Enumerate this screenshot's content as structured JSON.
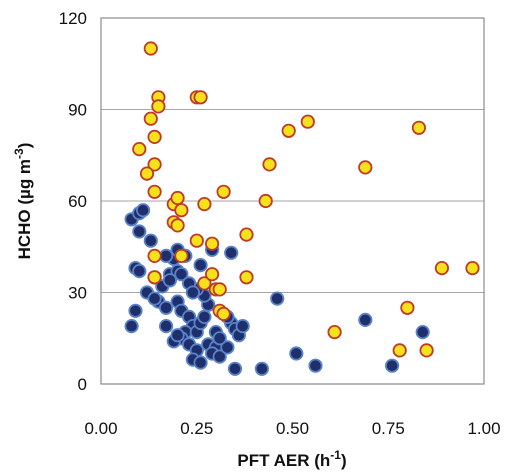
{
  "chart_data": {
    "type": "scatter",
    "xlabel": "PFT  AER (h",
    "xlabel_sup": "-1",
    "xlabel_tail": ")",
    "ylabel": "HCHO (µg m",
    "ylabel_sup": "-3",
    "ylabel_tail": ")",
    "xlim": [
      0.0,
      1.0
    ],
    "ylim": [
      0,
      120
    ],
    "x_ticks": [
      "0.00",
      "0.25",
      "0.50",
      "0.75",
      "1.00"
    ],
    "y_ticks": [
      "0",
      "30",
      "60",
      "90",
      "120"
    ],
    "grid": "horizontal",
    "legend": "none",
    "series": [
      {
        "color": "#1f2f6b",
        "edge": "#5a82c8",
        "points": [
          [
            0.08,
            54
          ],
          [
            0.1,
            56
          ],
          [
            0.11,
            57
          ],
          [
            0.1,
            50
          ],
          [
            0.13,
            47
          ],
          [
            0.09,
            38
          ],
          [
            0.1,
            37
          ],
          [
            0.14,
            35
          ],
          [
            0.16,
            32
          ],
          [
            0.12,
            30
          ],
          [
            0.15,
            27
          ],
          [
            0.17,
            25
          ],
          [
            0.14,
            28
          ],
          [
            0.09,
            24
          ],
          [
            0.08,
            19
          ],
          [
            0.17,
            19
          ],
          [
            0.18,
            36
          ],
          [
            0.2,
            37
          ],
          [
            0.18,
            34
          ],
          [
            0.21,
            36
          ],
          [
            0.19,
            41
          ],
          [
            0.17,
            42
          ],
          [
            0.2,
            44
          ],
          [
            0.22,
            42
          ],
          [
            0.2,
            27
          ],
          [
            0.21,
            24
          ],
          [
            0.23,
            22
          ],
          [
            0.24,
            19
          ],
          [
            0.22,
            17
          ],
          [
            0.25,
            17
          ],
          [
            0.26,
            20
          ],
          [
            0.27,
            22
          ],
          [
            0.28,
            26
          ],
          [
            0.27,
            29
          ],
          [
            0.25,
            31
          ],
          [
            0.23,
            33
          ],
          [
            0.21,
            15
          ],
          [
            0.23,
            13
          ],
          [
            0.25,
            11
          ],
          [
            0.24,
            8
          ],
          [
            0.26,
            7
          ],
          [
            0.28,
            13
          ],
          [
            0.3,
            12
          ],
          [
            0.29,
            10
          ],
          [
            0.31,
            9
          ],
          [
            0.33,
            12
          ],
          [
            0.3,
            17
          ],
          [
            0.31,
            15
          ],
          [
            0.34,
            20
          ],
          [
            0.35,
            18
          ],
          [
            0.36,
            16
          ],
          [
            0.37,
            19
          ],
          [
            0.33,
            22
          ],
          [
            0.34,
            43
          ],
          [
            0.26,
            39
          ],
          [
            0.29,
            44
          ],
          [
            0.24,
            30
          ],
          [
            0.19,
            14
          ],
          [
            0.2,
            16
          ],
          [
            0.35,
            5
          ],
          [
            0.42,
            5
          ],
          [
            0.46,
            28
          ],
          [
            0.51,
            10
          ],
          [
            0.56,
            6
          ],
          [
            0.69,
            21
          ],
          [
            0.76,
            6
          ],
          [
            0.84,
            17
          ]
        ]
      },
      {
        "color": "#f5e21a",
        "edge": "#c0392b",
        "points": [
          [
            0.13,
            110
          ],
          [
            0.15,
            94
          ],
          [
            0.15,
            91
          ],
          [
            0.25,
            94
          ],
          [
            0.26,
            94
          ],
          [
            0.13,
            87
          ],
          [
            0.14,
            81
          ],
          [
            0.1,
            77
          ],
          [
            0.14,
            72
          ],
          [
            0.12,
            69
          ],
          [
            0.14,
            63
          ],
          [
            0.19,
            59
          ],
          [
            0.2,
            61
          ],
          [
            0.21,
            57
          ],
          [
            0.27,
            59
          ],
          [
            0.19,
            53
          ],
          [
            0.2,
            52
          ],
          [
            0.25,
            47
          ],
          [
            0.29,
            46
          ],
          [
            0.14,
            42
          ],
          [
            0.21,
            42
          ],
          [
            0.14,
            35
          ],
          [
            0.27,
            33
          ],
          [
            0.3,
            31
          ],
          [
            0.31,
            31
          ],
          [
            0.29,
            36
          ],
          [
            0.31,
            24
          ],
          [
            0.32,
            23
          ],
          [
            0.32,
            63
          ],
          [
            0.38,
            49
          ],
          [
            0.38,
            35
          ],
          [
            0.43,
            60
          ],
          [
            0.44,
            72
          ],
          [
            0.49,
            83
          ],
          [
            0.54,
            86
          ],
          [
            0.61,
            17
          ],
          [
            0.69,
            71
          ],
          [
            0.78,
            11
          ],
          [
            0.8,
            25
          ],
          [
            0.83,
            84
          ],
          [
            0.85,
            11
          ],
          [
            0.89,
            38
          ],
          [
            0.97,
            38
          ]
        ]
      }
    ]
  }
}
